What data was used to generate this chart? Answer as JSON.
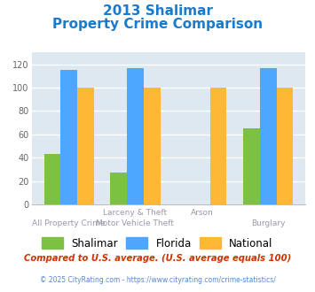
{
  "title_line1": "2013 Shalimar",
  "title_line2": "Property Crime Comparison",
  "cat_labels_top": [
    "",
    "Larceny & Theft",
    "Arson",
    ""
  ],
  "cat_labels_bot": [
    "All Property Crime",
    "Motor Vehicle Theft",
    "",
    "Burglary"
  ],
  "shalimar": [
    43,
    27,
    0,
    65
  ],
  "florida": [
    115,
    117,
    0,
    117
  ],
  "national": [
    100,
    100,
    100,
    100
  ],
  "shalimar_color": "#7dc142",
  "florida_color": "#4da6ff",
  "national_color": "#ffb833",
  "bar_width": 0.25,
  "ylim": [
    0,
    130
  ],
  "yticks": [
    0,
    20,
    40,
    60,
    80,
    100,
    120
  ],
  "background_color": "#ffffff",
  "plot_bg": "#dde8f0",
  "grid_color": "#ffffff",
  "footnote1": "Compared to U.S. average. (U.S. average equals 100)",
  "footnote2": "© 2025 CityRating.com - https://www.cityrating.com/crime-statistics/",
  "legend_labels": [
    "Shalimar",
    "Florida",
    "National"
  ]
}
